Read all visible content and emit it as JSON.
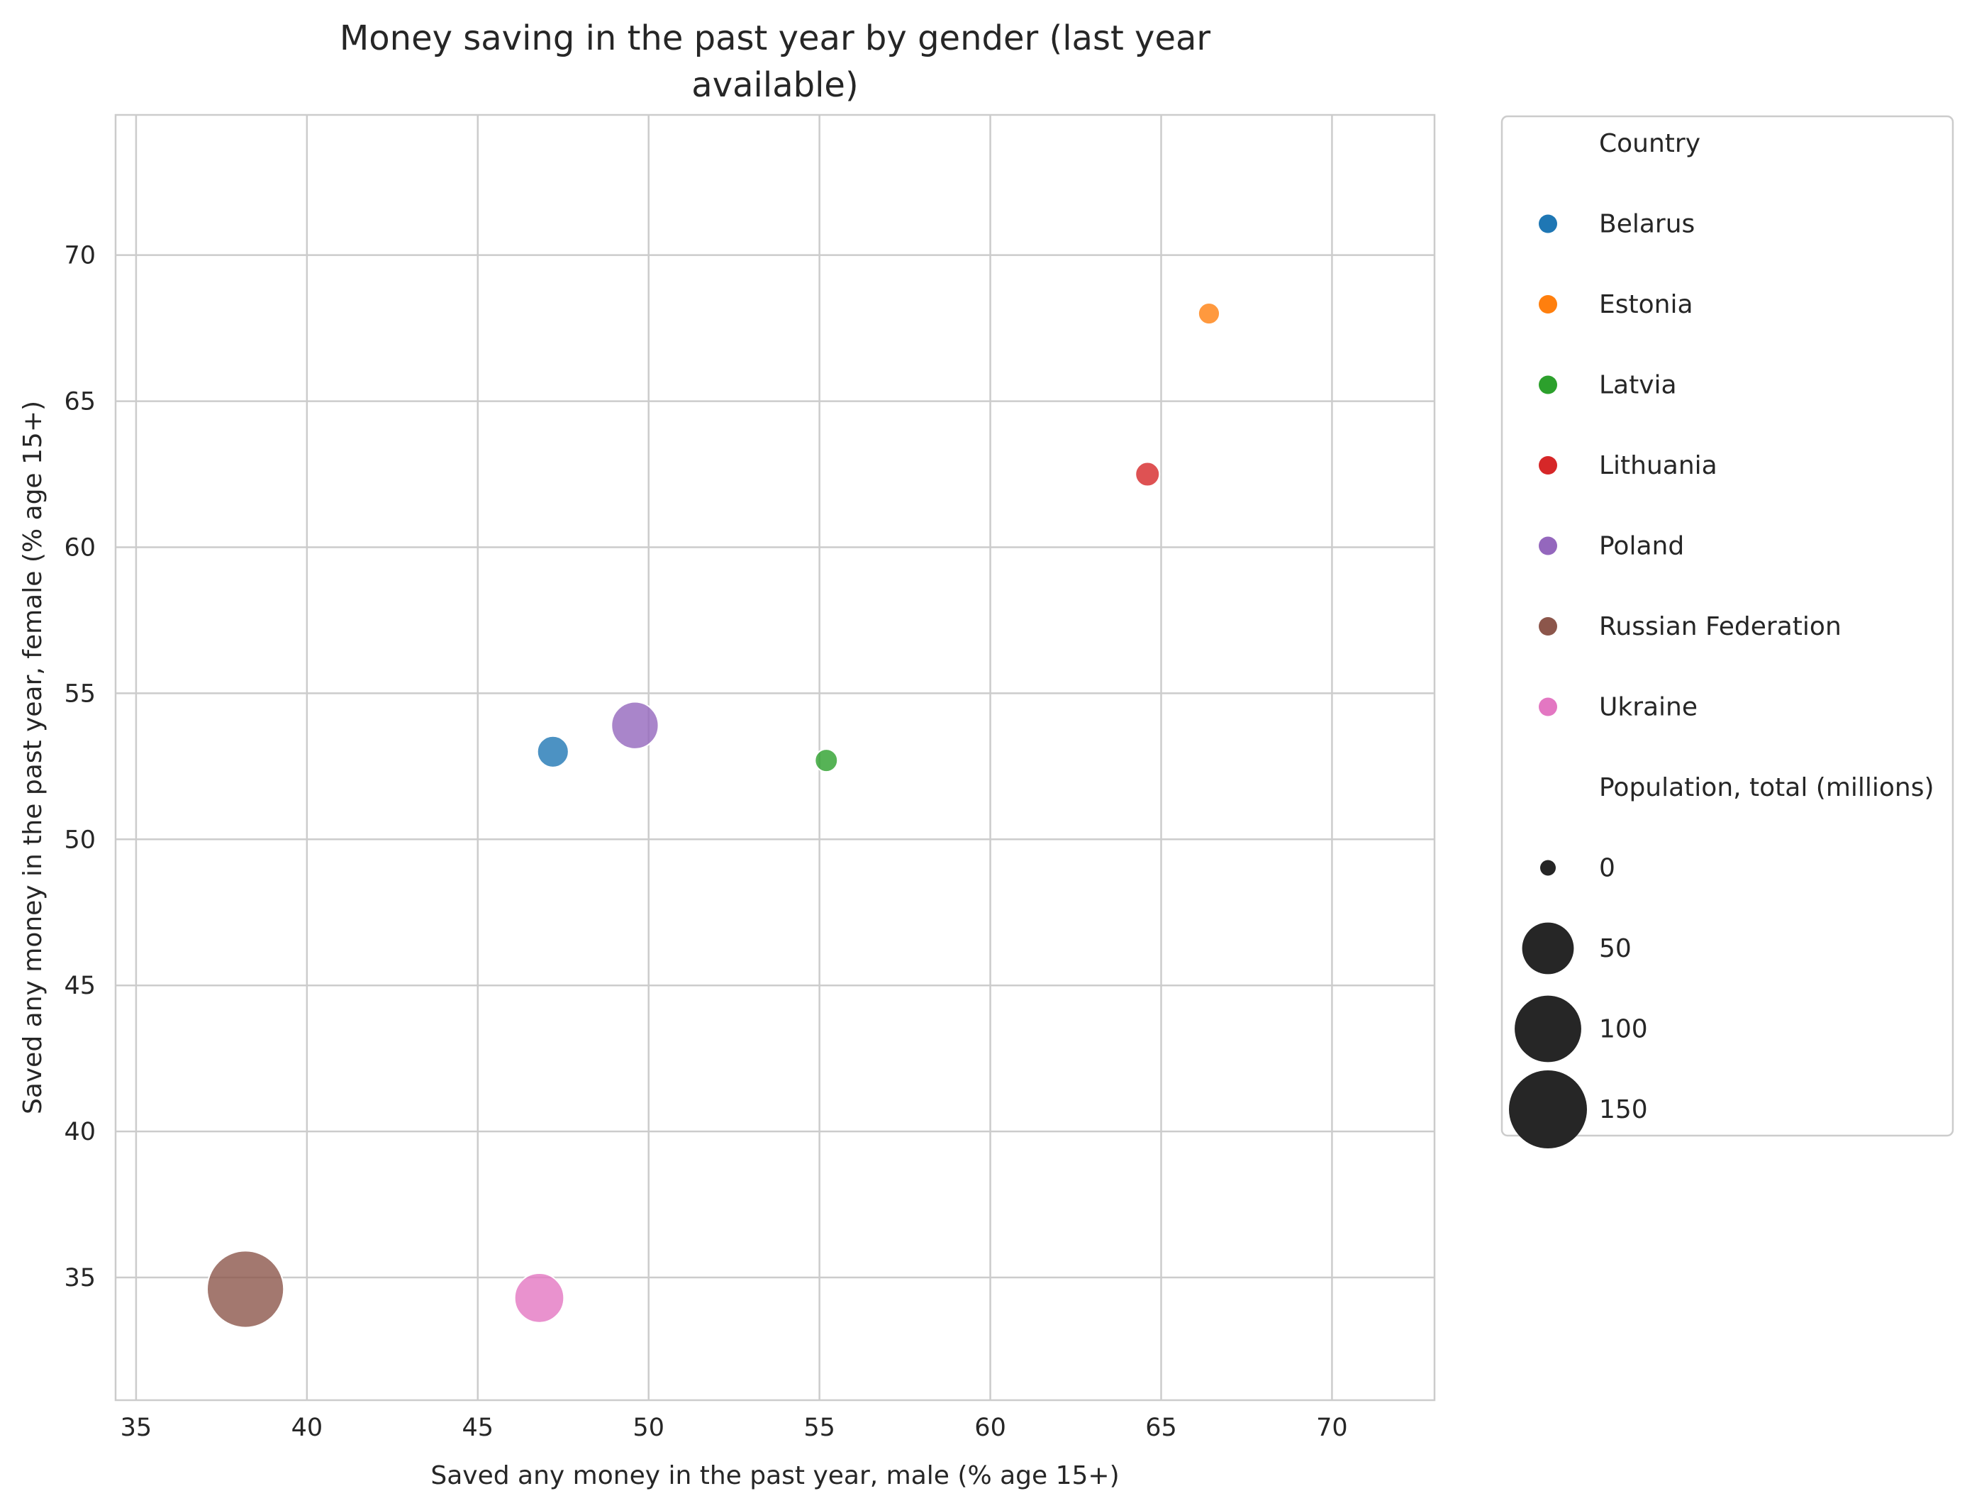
{
  "chart_data": {
    "type": "scatter",
    "title": "Money saving in the past year by gender (last year available)",
    "title_lines": [
      "Money saving in the past year by gender (last year",
      "available)"
    ],
    "xlabel": "Saved any money in the past year, male  (% age 15+)",
    "ylabel": "Saved any money in the past year, female  (% age 15+)",
    "xlim": [
      34.4,
      73
    ],
    "ylim": [
      30.8,
      74.8
    ],
    "xticks": [
      35,
      40,
      45,
      50,
      55,
      60,
      65,
      70
    ],
    "yticks": [
      35,
      40,
      45,
      50,
      55,
      60,
      65,
      70
    ],
    "grid": true,
    "legend_placement": "outside-right",
    "legend_hue_title": "Country",
    "legend_size_title": "Population, total (millions)",
    "size_legend": [
      {
        "label": "0",
        "value": 0
      },
      {
        "label": "50",
        "value": 50
      },
      {
        "label": "100",
        "value": 100
      },
      {
        "label": "150",
        "value": 150
      }
    ],
    "points": [
      {
        "name": "Belarus",
        "x": 47.2,
        "y": 53.0,
        "population": 9.5,
        "color": "#1f77b4"
      },
      {
        "name": "Estonia",
        "x": 66.4,
        "y": 68.0,
        "population": 1.3,
        "color": "#ff7f0e"
      },
      {
        "name": "Latvia",
        "x": 55.2,
        "y": 52.7,
        "population": 1.9,
        "color": "#2ca02c"
      },
      {
        "name": "Lithuania",
        "x": 64.6,
        "y": 62.5,
        "population": 2.8,
        "color": "#d62728"
      },
      {
        "name": "Poland",
        "x": 49.6,
        "y": 53.9,
        "population": 38.0,
        "color": "#9467bd"
      },
      {
        "name": "Russian Federation",
        "x": 38.2,
        "y": 34.6,
        "population": 144.0,
        "color": "#8c564b"
      },
      {
        "name": "Ukraine",
        "x": 46.8,
        "y": 34.3,
        "population": 44.0,
        "color": "#e377c2"
      }
    ]
  }
}
